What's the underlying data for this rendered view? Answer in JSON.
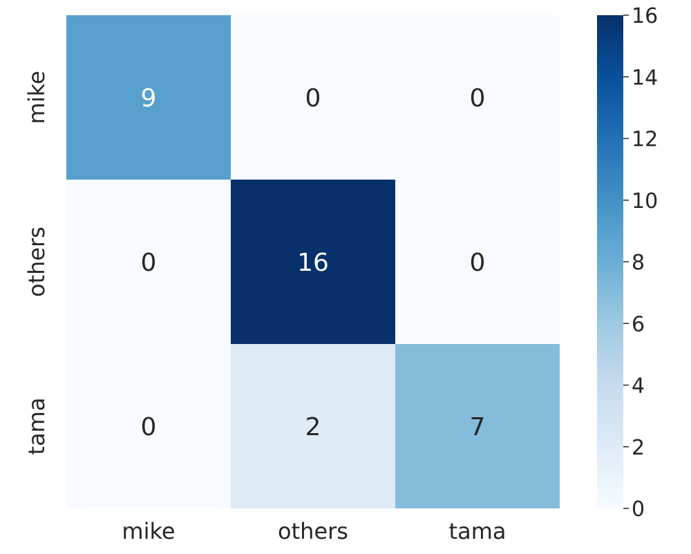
{
  "chart_data": {
    "type": "heatmap",
    "title": "",
    "xlabel": "",
    "ylabel": "",
    "x_categories": [
      "mike",
      "others",
      "tama"
    ],
    "y_categories": [
      "mike",
      "others",
      "tama"
    ],
    "matrix": [
      [
        9,
        0,
        0
      ],
      [
        0,
        16,
        0
      ],
      [
        0,
        2,
        7
      ]
    ],
    "colorbar": {
      "min": 0,
      "max": 16,
      "ticks": [
        0,
        2,
        4,
        6,
        8,
        10,
        12,
        14,
        16
      ]
    },
    "colormap": "Blues",
    "colors": {
      "text_dark": "#262626",
      "text_light": "#ffffff"
    }
  }
}
